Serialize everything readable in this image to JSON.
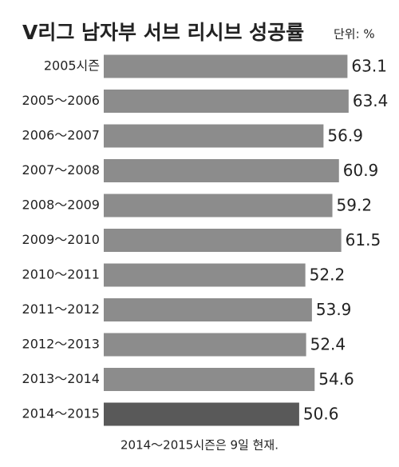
{
  "chart_data": {
    "type": "barh",
    "title": "V리그 남자부 서브 리시브 성공률",
    "unit": "단위: %",
    "note": "2014～2015시즌은 9일 현재.",
    "categories": [
      "2005시즌",
      "2005～2006",
      "2006～2007",
      "2007～2008",
      "2008～2009",
      "2009～2010",
      "2010～2011",
      "2011～2012",
      "2012～2013",
      "2013～2014",
      "2014～2015"
    ],
    "values": [
      63.1,
      63.4,
      56.9,
      60.9,
      59.2,
      61.5,
      52.2,
      53.9,
      52.4,
      54.6,
      50.6
    ],
    "colors": [
      "#8c8c8c",
      "#8c8c8c",
      "#8c8c8c",
      "#8c8c8c",
      "#8c8c8c",
      "#8c8c8c",
      "#8c8c8c",
      "#8c8c8c",
      "#8c8c8c",
      "#8c8c8c",
      "#595959"
    ]
  }
}
